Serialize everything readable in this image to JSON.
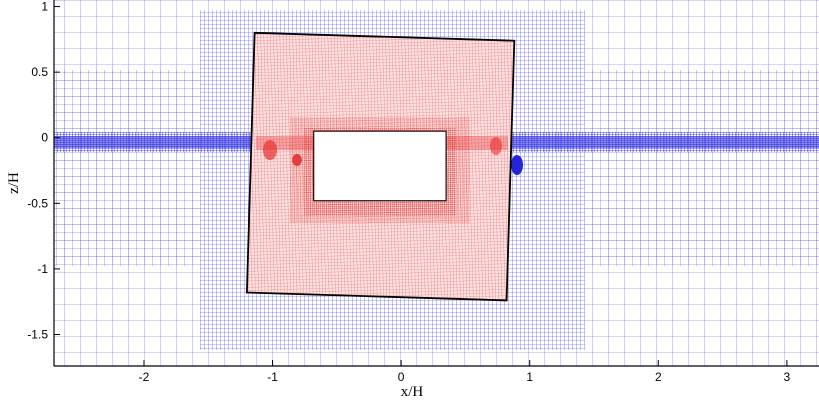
{
  "figure": {
    "xlabel": "x/H",
    "ylabel": "z/H",
    "xlim": [
      -2.7,
      3.25
    ],
    "ylim": [
      -1.74,
      1.05
    ]
  },
  "axes": {
    "x_ticks": [
      {
        "value": -2,
        "label": "-2"
      },
      {
        "value": -1,
        "label": "-1"
      },
      {
        "value": 0,
        "label": "0"
      },
      {
        "value": 1,
        "label": "1"
      },
      {
        "value": 2,
        "label": "2"
      },
      {
        "value": 3,
        "label": "3"
      }
    ],
    "y_ticks": [
      {
        "value": 1,
        "label": "1"
      },
      {
        "value": 0.5,
        "label": "0.5"
      },
      {
        "value": 0,
        "label": "0"
      },
      {
        "value": -0.5,
        "label": "-0.5"
      },
      {
        "value": -1,
        "label": "-1"
      },
      {
        "value": -1.5,
        "label": "-1.5"
      }
    ]
  },
  "colors": {
    "background_mesh": "#2a2ae8",
    "body_fitted_mesh": "#e83030",
    "overset_boundary": "#000000",
    "body": "#ffffff"
  },
  "mesh": {
    "overset_region_corners": [
      [
        -1.14,
        0.8
      ],
      [
        0.88,
        0.74
      ],
      [
        0.82,
        -1.24
      ],
      [
        -1.2,
        -1.18
      ]
    ],
    "body_corners": [
      [
        -0.68,
        0.05
      ],
      [
        0.35,
        0.05
      ],
      [
        0.35,
        -0.48
      ],
      [
        -0.68,
        -0.48
      ]
    ]
  }
}
